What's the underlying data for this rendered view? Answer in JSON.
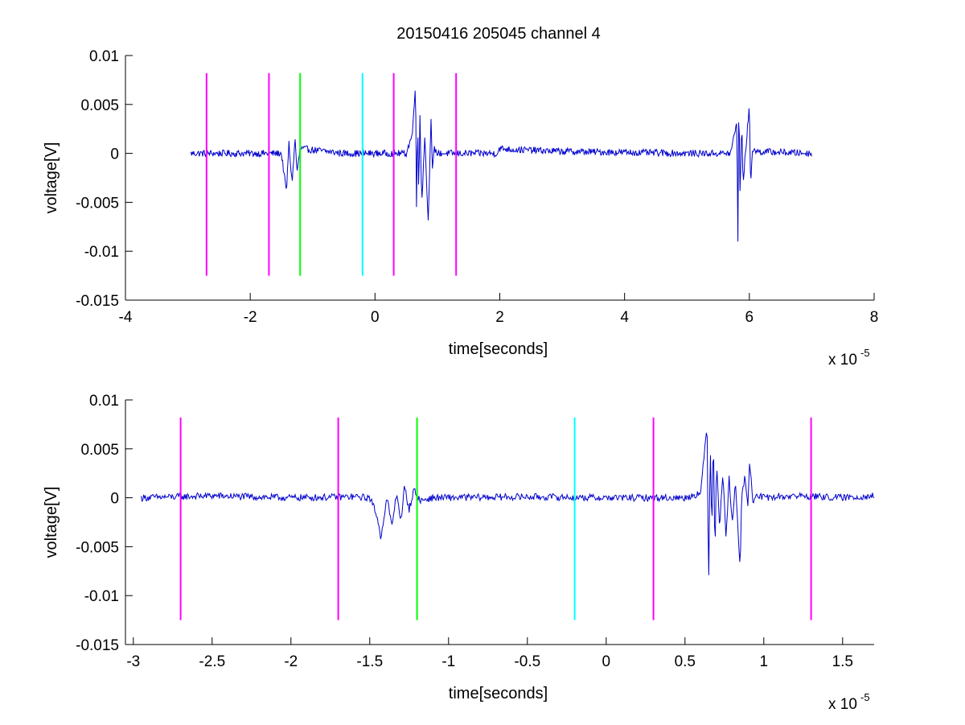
{
  "figure": {
    "background": "#ffffff",
    "title": "20150416 205045 channel 4"
  },
  "chart_data": [
    {
      "type": "line",
      "title": "20150416 205045 channel 4",
      "xlabel": "time[seconds]",
      "ylabel": "voltage[V]",
      "x_exponent_label": "x 10",
      "x_exponent_power": "-5",
      "xlim": [
        -4,
        8
      ],
      "ylim": [
        -0.015,
        0.01
      ],
      "xticks": [
        -4,
        -2,
        0,
        2,
        4,
        6,
        8
      ],
      "xtick_labels": [
        "-4",
        "-2",
        "0",
        "2",
        "4",
        "6",
        "8"
      ],
      "yticks": [
        -0.015,
        -0.01,
        -0.005,
        0,
        0.005,
        0.01
      ],
      "ytick_labels": [
        "-0.015",
        "-0.01",
        "-0.005",
        "0",
        "0.005",
        "0.01"
      ],
      "grid": false,
      "markers": [
        {
          "x": -2.7,
          "color": "#ff00ff"
        },
        {
          "x": -1.7,
          "color": "#ff00ff"
        },
        {
          "x": -1.2,
          "color": "#00ff00"
        },
        {
          "x": -0.2,
          "color": "#00ffff"
        },
        {
          "x": 0.3,
          "color": "#ff00ff"
        },
        {
          "x": 1.3,
          "color": "#ff00ff"
        }
      ],
      "marker_range": [
        -0.0125,
        0.0082
      ],
      "series": [
        {
          "color": "#0000cc",
          "x": [
            -2.95,
            -1.5,
            -1.45,
            -1.42,
            -1.38,
            -1.33,
            -1.28,
            -1.25,
            -1.2,
            -0.5,
            0.5,
            0.6,
            0.65,
            0.67,
            0.68,
            0.7,
            0.72,
            0.75,
            0.8,
            0.85,
            0.9,
            0.92,
            0.95,
            1.0,
            1.95,
            2.0,
            2.2,
            3.0,
            4.0,
            5.0,
            5.7,
            5.8,
            5.82,
            5.83,
            5.85,
            5.88,
            5.9,
            5.95,
            6.0,
            6.02,
            6.05,
            6.1,
            7.0
          ],
          "y": [
            0,
            0,
            -0.0025,
            -0.004,
            0.001,
            -0.003,
            0.0015,
            -0.002,
            0.0005,
            0,
            0,
            0.002,
            0.0075,
            -0.0095,
            0.005,
            -0.004,
            0.004,
            -0.005,
            0.002,
            -0.0072,
            0.0038,
            -0.002,
            0.0005,
            0,
            0,
            0.0005,
            0.0004,
            0.0002,
            0.0001,
            0,
            0,
            0.0032,
            -0.011,
            0.0065,
            -0.004,
            0.003,
            -0.003,
            0.001,
            0.0048,
            -0.0032,
            0.0005,
            0.0002,
            0
          ]
        }
      ]
    },
    {
      "type": "line",
      "title": "",
      "xlabel": "time[seconds]",
      "ylabel": "voltage[V]",
      "x_exponent_label": "x 10",
      "x_exponent_power": "-5",
      "xlim": [
        -3.05,
        1.7
      ],
      "ylim": [
        -0.015,
        0.01
      ],
      "xticks": [
        -3,
        -2.5,
        -2,
        -1.5,
        -1,
        -0.5,
        0,
        0.5,
        1,
        1.5
      ],
      "xtick_labels": [
        "-3",
        "-2.5",
        "-2",
        "-1.5",
        "-1",
        "-0.5",
        "0",
        "0.5",
        "1",
        "1.5"
      ],
      "yticks": [
        -0.015,
        -0.01,
        -0.005,
        0,
        0.005,
        0.01
      ],
      "ytick_labels": [
        "-0.015",
        "-0.01",
        "-0.005",
        "0",
        "0.005",
        "0.01"
      ],
      "grid": false,
      "markers": [
        {
          "x": -2.7,
          "color": "#ff00ff"
        },
        {
          "x": -1.7,
          "color": "#ff00ff"
        },
        {
          "x": -1.2,
          "color": "#00ff00"
        },
        {
          "x": -0.2,
          "color": "#00ffff"
        },
        {
          "x": 0.3,
          "color": "#ff00ff"
        },
        {
          "x": 1.3,
          "color": "#ff00ff"
        }
      ],
      "marker_range": [
        -0.0125,
        0.0082
      ],
      "series": [
        {
          "color": "#0000cc",
          "x": [
            -2.95,
            -2.5,
            -2.0,
            -1.6,
            -1.5,
            -1.46,
            -1.43,
            -1.41,
            -1.39,
            -1.36,
            -1.33,
            -1.3,
            -1.28,
            -1.25,
            -1.22,
            -1.18,
            -1.1,
            -0.5,
            0.0,
            0.5,
            0.6,
            0.64,
            0.65,
            0.66,
            0.67,
            0.68,
            0.69,
            0.7,
            0.72,
            0.74,
            0.76,
            0.78,
            0.8,
            0.82,
            0.84,
            0.85,
            0.86,
            0.88,
            0.9,
            0.91,
            0.93,
            0.96,
            1.0,
            1.2,
            1.5,
            1.7
          ],
          "y": [
            0,
            0.0002,
            0,
            0.0001,
            0,
            -0.0015,
            -0.004,
            -0.002,
            0,
            -0.003,
            0.0005,
            -0.0025,
            0.0012,
            -0.0012,
            0.0008,
            -0.0003,
            0,
            0.0001,
            0,
            0,
            0.0005,
            0.0075,
            -0.0095,
            0.006,
            -0.004,
            0.0072,
            -0.0065,
            0.004,
            -0.003,
            0.0025,
            -0.004,
            0.002,
            -0.0025,
            0.0015,
            -0.0045,
            -0.0072,
            0.0005,
            0.002,
            -0.001,
            0.004,
            -0.0005,
            0.0003,
            0,
            0.0002,
            0,
            0.0002
          ]
        }
      ]
    }
  ]
}
